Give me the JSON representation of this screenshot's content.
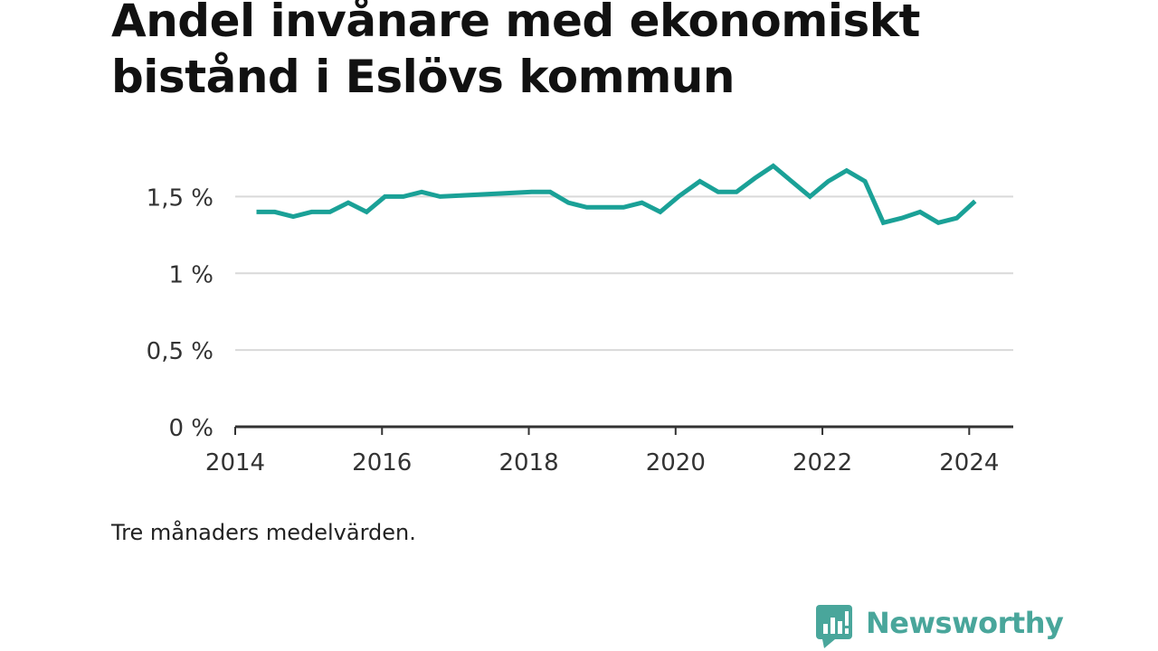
{
  "title": "Andel invånare med ekonomiskt bistånd i Eslövs kommun",
  "note": "Tre månaders medelvärden.",
  "brand": {
    "name": "Newsworthy",
    "icon": "newsworthy-logo-icon",
    "color": "#49a69b"
  },
  "chart_data": {
    "type": "line",
    "title": "Andel invånare med ekonomiskt bistånd i Eslövs kommun",
    "xlabel": "",
    "ylabel": "",
    "xlim": [
      2014,
      2024.6
    ],
    "ylim": [
      0,
      1.75
    ],
    "y_ticks": [
      0,
      0.5,
      1,
      1.5
    ],
    "y_tick_labels": [
      "0 %",
      "0,5 %",
      "1 %",
      "1,5 %"
    ],
    "x_ticks": [
      2014,
      2016,
      2018,
      2020,
      2022,
      2024
    ],
    "x_tick_labels": [
      "2014",
      "2016",
      "2018",
      "2020",
      "2022",
      "2024"
    ],
    "grid": true,
    "legend": "none",
    "line_color": "#1aa197",
    "series": [
      {
        "x": [
          2014.29,
          2014.54,
          2014.79,
          2015.04,
          2015.29,
          2015.54,
          2015.79,
          2016.04,
          2016.29,
          2016.54,
          2016.79,
          2018.04,
          2018.29,
          2018.54,
          2018.79,
          2019.04,
          2019.29,
          2019.54,
          2019.79,
          2020.04,
          2020.33,
          2020.58,
          2020.83,
          2021.08,
          2021.33,
          2021.58,
          2021.83,
          2022.08,
          2022.33,
          2022.58,
          2022.83,
          2023.08,
          2023.33,
          2023.58,
          2023.83,
          2024.08
        ],
        "y": [
          1.4,
          1.4,
          1.37,
          1.4,
          1.4,
          1.46,
          1.4,
          1.5,
          1.5,
          1.53,
          1.5,
          1.53,
          1.53,
          1.46,
          1.43,
          1.43,
          1.43,
          1.46,
          1.4,
          1.5,
          1.6,
          1.53,
          1.53,
          1.62,
          1.7,
          1.6,
          1.5,
          1.6,
          1.67,
          1.6,
          1.33,
          1.36,
          1.4,
          1.33,
          1.36,
          1.47
        ]
      }
    ]
  }
}
